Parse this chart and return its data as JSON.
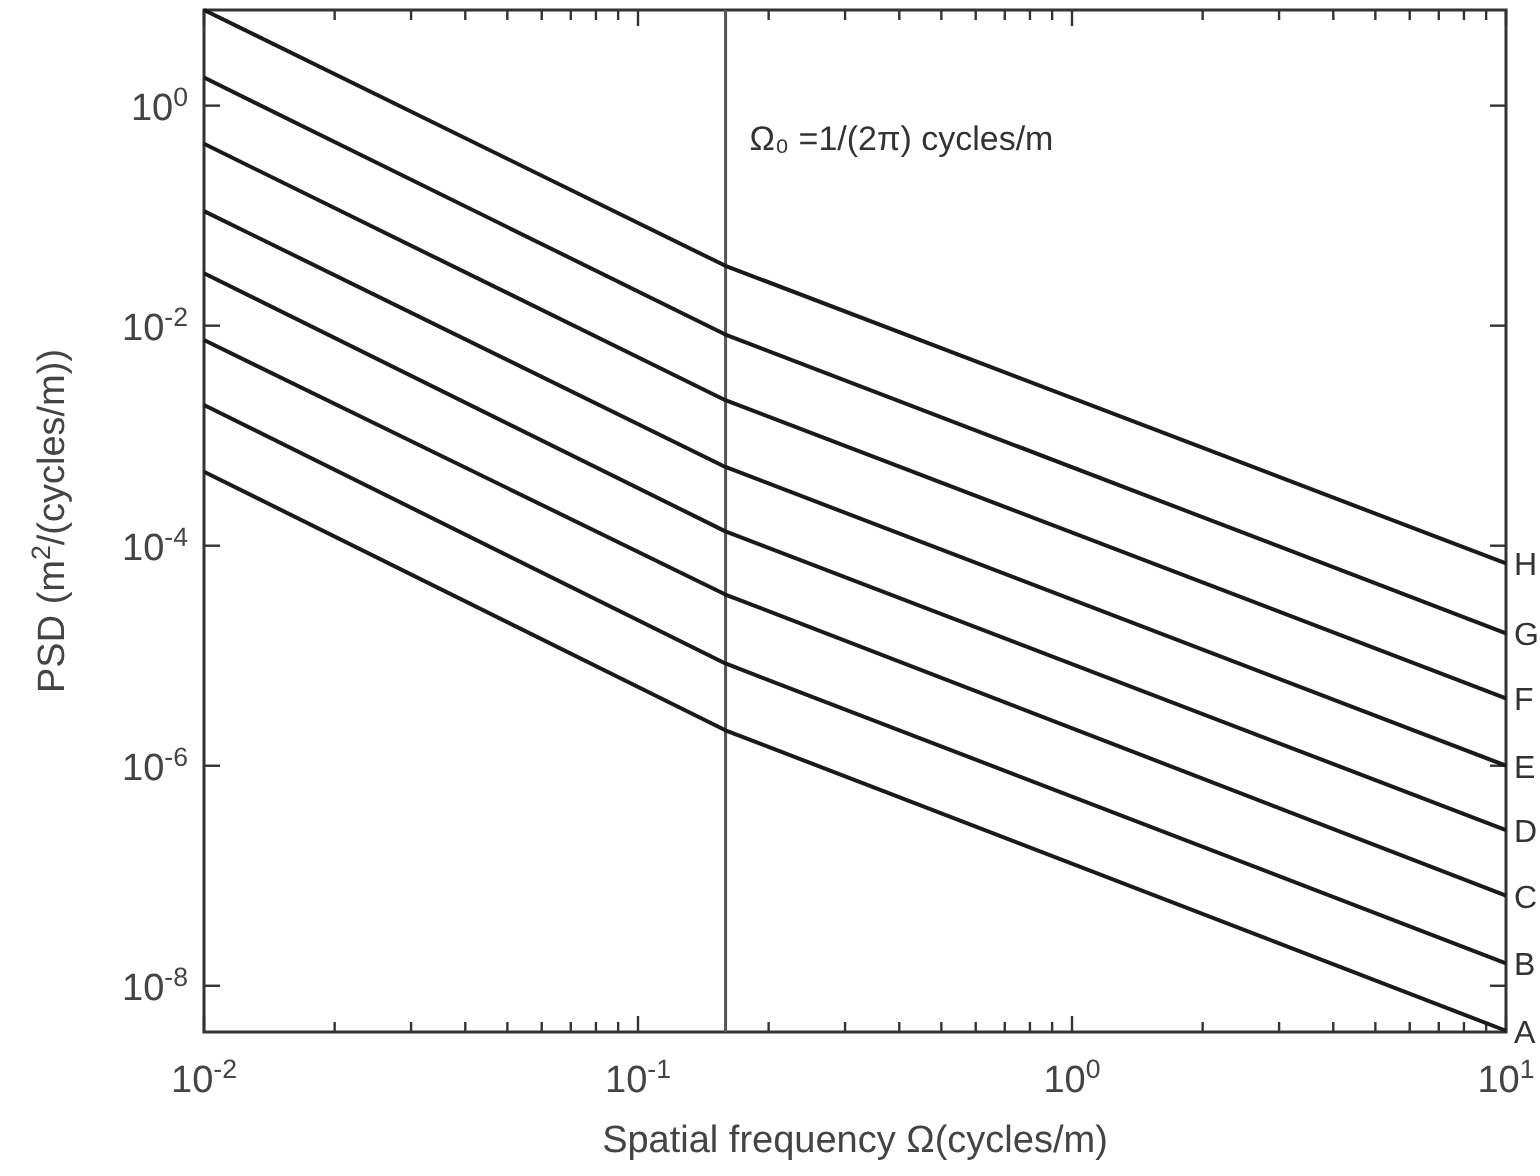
{
  "chart_data": {
    "type": "line",
    "log": "xy",
    "xlabel": "Spatial frequency Ω(cycles/m)",
    "ylabel": "PSD (m$^{2}$/(cycles/m))",
    "xlim": [
      0.01,
      10
    ],
    "ylim": [
      3.8e-09,
      7.4
    ],
    "xticks": [
      {
        "value": 0.01,
        "label": "10$^{-2}$"
      },
      {
        "value": 0.02,
        "label": null
      },
      {
        "value": 0.03,
        "label": null
      },
      {
        "value": 0.04,
        "label": null
      },
      {
        "value": 0.05,
        "label": null
      },
      {
        "value": 0.06,
        "label": null
      },
      {
        "value": 0.07,
        "label": null
      },
      {
        "value": 0.08,
        "label": null
      },
      {
        "value": 0.09,
        "label": null
      },
      {
        "value": 0.1,
        "label": "10$^{-1}$"
      },
      {
        "value": 0.2,
        "label": null
      },
      {
        "value": 0.3,
        "label": null
      },
      {
        "value": 0.4,
        "label": null
      },
      {
        "value": 0.5,
        "label": null
      },
      {
        "value": 0.6,
        "label": null
      },
      {
        "value": 0.7,
        "label": null
      },
      {
        "value": 0.8,
        "label": null
      },
      {
        "value": 0.9,
        "label": null
      },
      {
        "value": 1,
        "label": "10$^{0}$"
      },
      {
        "value": 2,
        "label": null
      },
      {
        "value": 3,
        "label": null
      },
      {
        "value": 4,
        "label": null
      },
      {
        "value": 5,
        "label": null
      },
      {
        "value": 6,
        "label": null
      },
      {
        "value": 7,
        "label": null
      },
      {
        "value": 8,
        "label": null
      },
      {
        "value": 9,
        "label": null
      },
      {
        "value": 10,
        "label": "10$^{1}$"
      }
    ],
    "yticks": [
      {
        "value": 1e-08,
        "label": "10$^{-8}$"
      },
      {
        "value": 1e-06,
        "label": "10$^{-6}$"
      },
      {
        "value": 0.0001,
        "label": "10$^{-4}$"
      },
      {
        "value": 0.01,
        "label": "10$^{-2}$"
      },
      {
        "value": 1,
        "label": "10$^{0}$"
      }
    ],
    "x": [
      0.01,
      0.159,
      10
    ],
    "series": [
      {
        "name": "A",
        "color": "#1a1a1a",
        "values": [
          0.00047,
          2.1e-06,
          3.9e-09
        ]
      },
      {
        "name": "B",
        "color": "#1a1a1a",
        "values": [
          0.0019,
          8.5e-06,
          1.6e-08
        ]
      },
      {
        "name": "C",
        "color": "#1a1a1a",
        "values": [
          0.0074,
          3.6e-05,
          6.6e-08
        ]
      },
      {
        "name": "D",
        "color": "#1a1a1a",
        "values": [
          0.03,
          0.000135,
          2.6e-07
        ]
      },
      {
        "name": "E",
        "color": "#1a1a1a",
        "values": [
          0.11,
          0.00052,
          1e-06
        ]
      },
      {
        "name": "F",
        "color": "#1a1a1a",
        "values": [
          0.45,
          0.0021,
          4.1e-06
        ]
      },
      {
        "name": "G",
        "color": "#1a1a1a",
        "values": [
          1.8,
          0.0083,
          1.6e-05
        ]
      },
      {
        "name": "H",
        "color": "#1a1a1a",
        "values": [
          7.4,
          0.035,
          6.9e-05
        ]
      }
    ],
    "ref_lines": [
      {
        "axis": "x",
        "value": 0.15915,
        "color": "#555555"
      }
    ],
    "annotations": [
      "Ω₀ =1/(2π) cycles/m"
    ]
  }
}
